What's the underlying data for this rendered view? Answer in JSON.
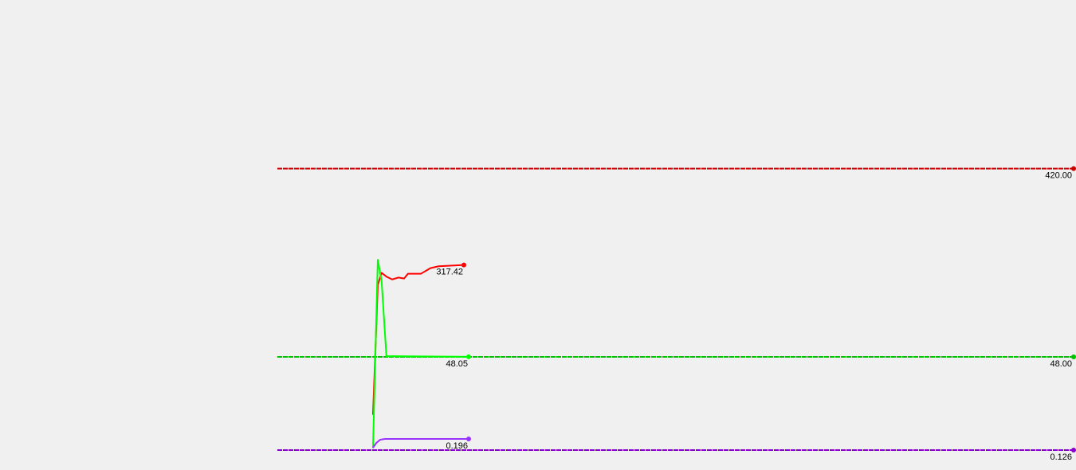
{
  "chart_data": {
    "type": "line",
    "grid": false,
    "legend": "none",
    "series": [
      {
        "key": "red",
        "color": "#ff0000",
        "ref_color": "#cc0000",
        "target": 420.0,
        "target_label": "420.00",
        "current_label": "317.42",
        "x": [
          0,
          1,
          1.8,
          2.8,
          4,
          5.3,
          6.5,
          7.3,
          10,
          12,
          13.7,
          19
        ],
        "y": [
          158,
          296,
          309,
          305,
          302,
          304,
          303,
          308,
          308,
          314,
          316,
          317.42
        ]
      },
      {
        "key": "green",
        "color": "#00ff00",
        "ref_color": "#00c000",
        "target": 48.0,
        "target_label": "48.00",
        "current_label": "48.05",
        "x": [
          0,
          1,
          1.8,
          2.8,
          20
        ],
        "y": [
          1,
          98,
          87,
          48.4,
          48.05
        ]
      },
      {
        "key": "purple",
        "color": "#9933ff",
        "ref_color": "#8800cc",
        "target": 0.126,
        "target_label": "0.126",
        "current_label": "0.196",
        "x": [
          0,
          0.7,
          1.5,
          2.5,
          20
        ],
        "y": [
          0.141,
          0.171,
          0.191,
          0.196,
          0.196
        ]
      }
    ]
  }
}
